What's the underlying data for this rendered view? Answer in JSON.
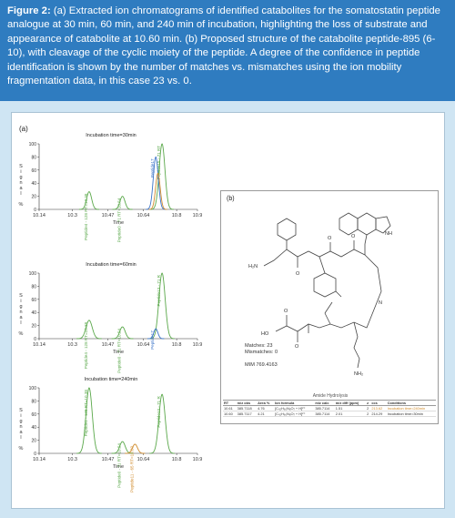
{
  "caption": {
    "label": "Figure 2:",
    "text": " (a) Extracted ion chromatograms of identified catabolites for the somatostatin peptide analogue at 30 min, 60 min, and 240 min of incubation, highlighting the loss of substrate and appearance of catabolite at 10.60 min. (b) Proposed structure of the catabolite peptide-895 (6-10), with cleavage of the cyclic moiety of the peptide. A degree of the confidence in peptide identification is shown by the number of matches vs. mismatches using the ion mobility fragmentation data, in this case 23 vs. 0."
  },
  "panel_a": {
    "label": "(a)"
  },
  "panel_b": {
    "label": "(b)",
    "matches": "Matches: 23",
    "mismatches": "Mismatches: 0",
    "mim": "MIM 769.4163",
    "amide_label": "Amide Hydrolysis",
    "atom_labels": {
      "h2n": "H₂N",
      "ho": "HO",
      "nh2": "NH₂",
      "o": "O",
      "n": "N",
      "nh": "NH"
    },
    "table": {
      "headers": [
        "RT",
        "m/z obs",
        "Area %",
        "Ion formula",
        "m/z calc",
        "m/z diff (ppm)",
        "z",
        "ccs",
        "Conditions"
      ],
      "rows": [
        [
          "10.61",
          "385.7118",
          "4.76",
          "[C₄₂H₆₀N₈O₇ + H]²⁺",
          "385.7114",
          "1.51",
          "2",
          "213.62",
          "Incubation time=240min"
        ],
        [
          "10.60",
          "385.7117",
          "4.21",
          "[C₄₂H₆₀N₈O₇ + H]²⁺",
          "385.7114",
          "2.01",
          "2",
          "214.29",
          "Incubation time=30min"
        ]
      ]
    }
  },
  "colors": {
    "caption_bg": "#2f7cc0",
    "figure_bg": "#cfe5f3",
    "green": "#5aa84a",
    "blue": "#3a73c8",
    "orange": "#d08a2a"
  },
  "chart_data": [
    {
      "type": "line",
      "title": "Incubation time=30min",
      "ylabel": "Signal %",
      "xlabel": "Time",
      "xlim": [
        10.14,
        10.9
      ],
      "ylim": [
        0,
        100
      ],
      "x_ticks": [
        "10.14",
        "10.3",
        "10.47",
        "10.64",
        "10.8",
        "10.9"
      ],
      "y_ticks": [
        "100",
        "80",
        "60",
        "40",
        "20",
        "0"
      ],
      "series": [
        {
          "name": "Peptide4 - 128 RT=10.38",
          "color": "#5aa84a",
          "rt": 10.38,
          "height": 27,
          "width": 0.012
        },
        {
          "name": "Peptide0 - 71 RT=10.54",
          "color": "#5aa84a",
          "rt": 10.54,
          "height": 20,
          "width": 0.012
        },
        {
          "name": "Peptide15 - 71 RT",
          "color": "#5aa84a",
          "rt": 10.73,
          "height": 100,
          "width": 0.014
        },
        {
          "name": "Peptide17",
          "color": "#3a73c8",
          "rt": 10.7,
          "height": 80,
          "width": 0.012
        },
        {
          "name": "",
          "color": "#d08a2a",
          "rt": 10.71,
          "height": 55,
          "width": 0.011
        }
      ]
    },
    {
      "type": "line",
      "title": "Incubation time=60min",
      "ylabel": "Signal %",
      "xlabel": "Time",
      "xlim": [
        10.14,
        10.9
      ],
      "ylim": [
        0,
        100
      ],
      "x_ticks": [
        "10.14",
        "10.3",
        "10.47",
        "10.64",
        "10.8",
        "10.9"
      ],
      "y_ticks": [
        "100",
        "80",
        "60",
        "40",
        "20",
        "0"
      ],
      "series": [
        {
          "name": "Peptide4 - 128 RT=10.38",
          "color": "#5aa84a",
          "rt": 10.38,
          "height": 28,
          "width": 0.015
        },
        {
          "name": "Peptide0 - 71 RT=10.54",
          "color": "#5aa84a",
          "rt": 10.54,
          "height": 18,
          "width": 0.013
        },
        {
          "name": "Peptide13 - 71 R",
          "color": "#5aa84a",
          "rt": 10.73,
          "height": 100,
          "width": 0.015
        },
        {
          "name": "Peptide17",
          "color": "#3a73c8",
          "rt": 10.7,
          "height": 15,
          "width": 0.01
        }
      ]
    },
    {
      "type": "line",
      "title": "Incubation time=240min",
      "ylabel": "Signal %",
      "xlabel": "Time",
      "xlim": [
        10.14,
        10.9
      ],
      "ylim": [
        0,
        100
      ],
      "x_ticks": [
        "10.14",
        "10.3",
        "10.47",
        "10.64",
        "10.8",
        "10.9"
      ],
      "y_ticks": [
        "100",
        "80",
        "60",
        "40",
        "20",
        "0"
      ],
      "series": [
        {
          "name": "Peptide4 - 128 RT=10.38",
          "color": "#5aa84a",
          "rt": 10.38,
          "height": 100,
          "width": 0.015
        },
        {
          "name": "Peptide0 - 71 RT=10.54",
          "color": "#5aa84a",
          "rt": 10.54,
          "height": 18,
          "width": 0.013
        },
        {
          "name": "Peptide11 - 65 RT=10.60",
          "color": "#d08a2a",
          "rt": 10.6,
          "height": 14,
          "width": 0.012
        },
        {
          "name": "Peptide13 - 71 R",
          "color": "#5aa84a",
          "rt": 10.73,
          "height": 90,
          "width": 0.015
        }
      ]
    }
  ]
}
